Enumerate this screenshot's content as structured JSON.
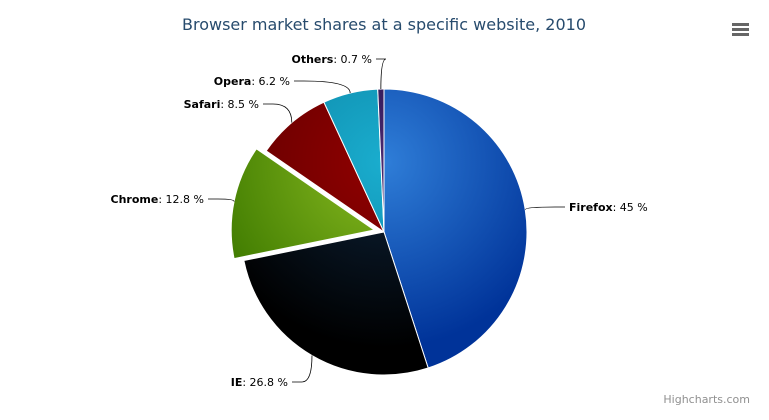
{
  "chart_data": {
    "type": "pie",
    "title": "Browser market shares at a specific website, 2010",
    "unit": "%",
    "slices": [
      {
        "name": "Firefox",
        "value": 45.0,
        "color": "#2f7ed8",
        "dark": "#003399",
        "sliced": false
      },
      {
        "name": "IE",
        "value": 26.8,
        "color": "#0d233a",
        "dark": "#000000",
        "sliced": false
      },
      {
        "name": "Chrome",
        "value": 12.8,
        "color": "#8bbc21",
        "dark": "#3e7a00",
        "sliced": true
      },
      {
        "name": "Safari",
        "value": 8.5,
        "color": "#910000",
        "dark": "#5e0000",
        "sliced": false
      },
      {
        "name": "Opera",
        "value": 6.2,
        "color": "#1aadce",
        "dark": "#0a7fa0",
        "sliced": false
      },
      {
        "name": "Others",
        "value": 0.7,
        "color": "#492970",
        "dark": "#1b0a40",
        "sliced": false
      }
    ],
    "labels": [
      "Firefox: 45 %",
      "IE: 26.8 %",
      "Chrome: 12.8 %",
      "Safari: 8.5 %",
      "Opera: 6.2 %",
      "Others: 0.7 %"
    ],
    "legend": "none"
  },
  "credits": "Highcharts.com",
  "menu_icon": "hamburger-menu-icon"
}
